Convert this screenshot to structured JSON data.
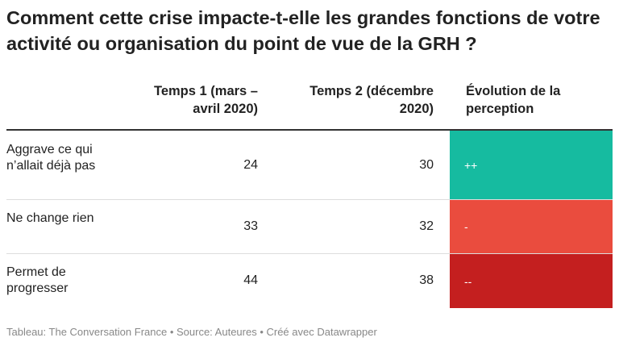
{
  "title": "Comment cette crise impacte-t-elle les grandes fonctions de votre activité ou organisation du point de vue de la GRH ?",
  "chart_data": {
    "type": "table",
    "columns": [
      "",
      "Temps 1 (mars – avril 2020)",
      "Temps 2 (décembre 2020)",
      "Évolution de la perception"
    ],
    "rows": [
      {
        "label": "Aggrave ce qui n’allait déjà pas",
        "temps1": "24",
        "temps2": "30",
        "evolution": "++",
        "color": "#16bba0"
      },
      {
        "label": "Ne change rien",
        "temps1": "33",
        "temps2": "32",
        "evolution": "-",
        "color": "#ea4c3e"
      },
      {
        "label": "Permet de progresser",
        "temps1": "44",
        "temps2": "38",
        "evolution": "--",
        "color": "#c41f1f"
      }
    ]
  },
  "footer": "Tableau: The Conversation France • Source: Auteures • Créé avec Datawrapper"
}
